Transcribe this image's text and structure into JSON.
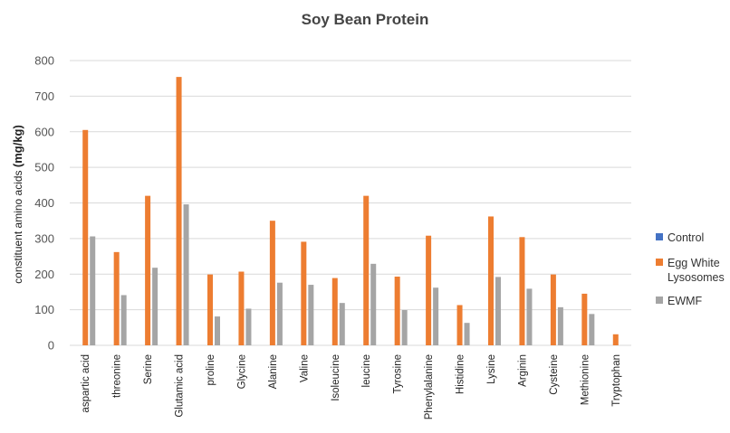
{
  "chart_data": {
    "type": "bar",
    "title": "Soy Bean Protein",
    "ylabel_main": "constituent amino acids ",
    "ylabel_unit": "(mg/kg)",
    "ylim": [
      0,
      800
    ],
    "yticks": [
      0,
      100,
      200,
      300,
      400,
      500,
      600,
      700,
      800
    ],
    "grid": true,
    "legend_position": "right",
    "categories": [
      "aspartic acid",
      "threonine",
      "Serine",
      "Glutamic acid",
      "proline",
      "Glycine",
      "Alanine",
      "Valine",
      "Isoleucine",
      "leucine",
      "Tyrosine",
      "Phenylalanine",
      "Histidine",
      "Lysine",
      "Arginin",
      "Cysteine",
      "Methionine",
      "Tryptophan"
    ],
    "series": [
      {
        "name": "Control",
        "color": "#4472c4",
        "values": [
          0,
          0,
          0,
          0,
          0,
          0,
          0,
          0,
          0,
          0,
          0,
          0,
          0,
          0,
          0,
          0,
          0,
          0
        ]
      },
      {
        "name": "Egg White Lysosomes",
        "color": "#ed7d31",
        "values": [
          605,
          262,
          420,
          754,
          199,
          207,
          350,
          291,
          189,
          420,
          193,
          308,
          113,
          362,
          304,
          199,
          145,
          31
        ]
      },
      {
        "name": "EWMF",
        "color": "#a5a5a5",
        "values": [
          306,
          141,
          218,
          396,
          81,
          103,
          176,
          170,
          119,
          229,
          99,
          162,
          63,
          192,
          159,
          107,
          88,
          0
        ]
      }
    ]
  },
  "legend": {
    "control": "Control",
    "egg_line1": "Egg White",
    "egg_line2": "Lysosomes",
    "ewmf": "EWMF"
  }
}
